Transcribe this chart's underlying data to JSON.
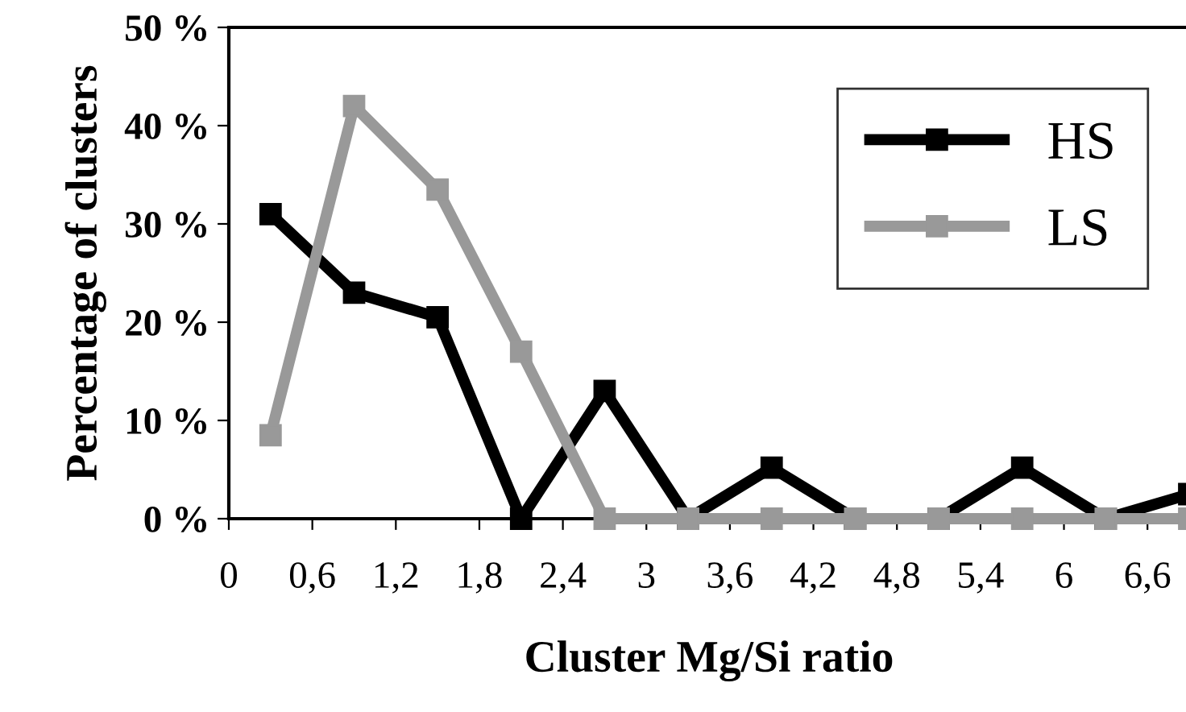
{
  "chart_data": {
    "type": "line",
    "xlabel": "Cluster Mg/Si ratio",
    "ylabel": "Percentage of clusters",
    "x": [
      0.3,
      0.9,
      1.5,
      2.1,
      2.7,
      3.3,
      3.9,
      4.5,
      5.1,
      5.7,
      6.3,
      6.9
    ],
    "series": [
      {
        "name": "HS",
        "color": "#000000",
        "values": [
          31,
          23,
          20.5,
          0,
          13,
          0,
          5.2,
          0,
          0,
          5.2,
          0,
          2.5
        ]
      },
      {
        "name": "LS",
        "color": "#999999",
        "values": [
          8.5,
          42,
          33.5,
          17,
          0,
          0,
          0,
          0,
          0,
          0,
          0,
          0
        ]
      }
    ],
    "xlim": [
      0,
      6.9
    ],
    "xticks": [
      0,
      {
        "value": 0.6,
        "label": "0,6"
      },
      {
        "value": 1.2,
        "label": "1,2"
      },
      {
        "value": 1.8,
        "label": "1,8"
      },
      {
        "value": 2.4,
        "label": "2,4"
      },
      3,
      {
        "value": 3.6,
        "label": "3,6"
      },
      {
        "value": 4.2,
        "label": "4,2"
      },
      {
        "value": 4.8,
        "label": "4,8"
      },
      {
        "value": 5.4,
        "label": "5,4"
      },
      6,
      {
        "value": 6.6,
        "label": "6,6"
      }
    ],
    "ylim": [
      0,
      50
    ],
    "yticks": [
      {
        "value": 0,
        "label": "0 %"
      },
      {
        "value": 10,
        "label": "10 %"
      },
      {
        "value": 20,
        "label": "20 %"
      },
      {
        "value": 30,
        "label": "30 %"
      },
      {
        "value": 40,
        "label": "40 %"
      },
      {
        "value": 50,
        "label": "50 %"
      }
    ],
    "marker": "square",
    "line_style": "solid",
    "legend": "top right",
    "grid": false
  }
}
